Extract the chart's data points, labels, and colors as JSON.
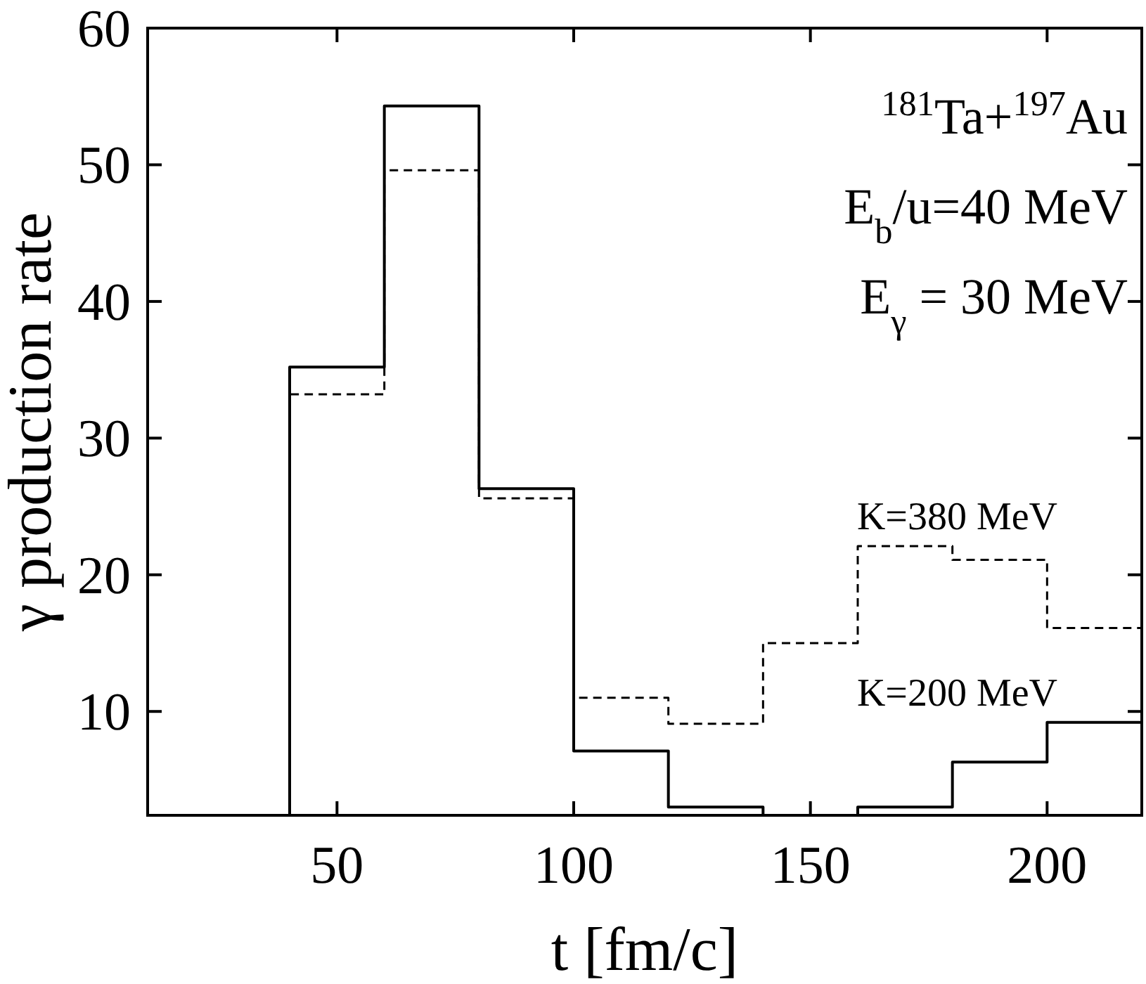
{
  "chart_data": {
    "type": "histogram",
    "xlabel": "t [fm/c]",
    "ylabel": "γ production rate",
    "annotations": [
      "$^{181}$Ta+$^{197}$Au",
      "E$_{b}$/u=40 MeV",
      "E$_{γ}$ = 30 MeV"
    ],
    "bins": [
      40,
      60,
      80,
      100,
      120,
      140,
      160,
      180,
      200,
      220
    ],
    "series": [
      {
        "name": "K=200 MeV",
        "color": "#000000",
        "line_style": "solid",
        "values": [
          35.2,
          54.3,
          26.3,
          7.1,
          3.0,
          2.4,
          3.0,
          6.3,
          9.2
        ]
      },
      {
        "name": "K=380 MeV",
        "color": "#000000",
        "line_style": "dashed",
        "values": [
          33.2,
          49.6,
          25.6,
          11.0,
          9.1,
          15.0,
          22.1,
          21.1,
          16.1
        ]
      }
    ],
    "xlim": [
      10,
      220
    ],
    "ylim": [
      2.4,
      60
    ],
    "xticks": [
      50,
      100,
      150,
      200
    ],
    "yticks": [
      10,
      20,
      30,
      40,
      50,
      60
    ],
    "grid": false,
    "legend": "right"
  }
}
